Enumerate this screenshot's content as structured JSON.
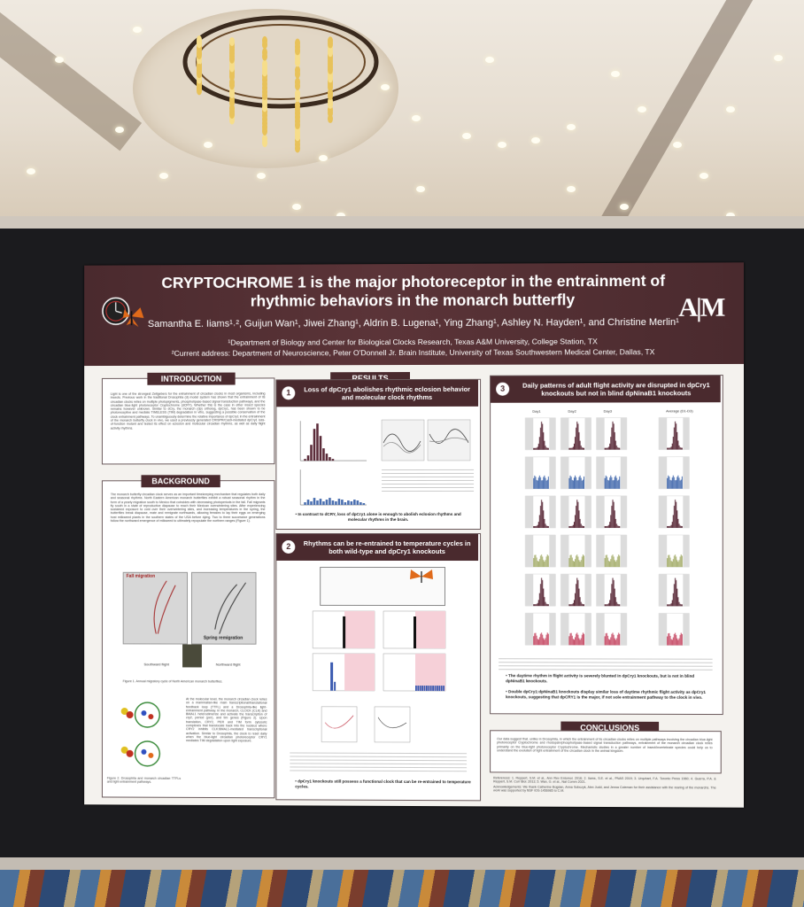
{
  "poster": {
    "title_line1": "CRYPTOCHROME 1 is the major photoreceptor in the entrainment of",
    "title_line2": "rhythmic behaviors in the monarch butterfly",
    "authors": "Samantha E. Iiams¹˒², Guijun Wan¹, Jiwei Zhang¹, Aldrin B. Lugena¹, Ying Zhang¹, Ashley N. Hayden¹, and Christine Merlin¹",
    "affiliation1": "¹Department of Biology and Center for Biological Clocks Research, Texas A&M University, College Station, TX",
    "affiliation2": "²Current address: Department of Neuroscience, Peter O'Donnell Jr. Brain Institute, University of Texas Southwestern Medical Center, Dallas, TX",
    "logo_right": "A|M"
  },
  "sections": {
    "introduction": {
      "title": "INTRODUCTION",
      "text": "Light is one of the strongest Zeitgebers for the entrainment of circadian clocks in most organisms, including insects. Previous work in the traditional Drosophila (d) model system has shown that the entrainment of its circadian clocks relies on multiple photopigments, phospholipase-based signal transduction pathways, and the circadian blue-light photoreceptor Cryptochrome (dCRY). Whether this is the case in other insect species remains however unknown. Similar to dCry, the monarch (dp) ortholog, dpCry1, has been shown to be photoreceptive and mediate TIMELESS (TIM) degradation in vitro, suggesting a possible conservation of the clock entrainment pathways. To unambiguously determine the relative importance of dpCry1 in the entrainment of the monarch butterfly clock in vivo, we used a previously generated CRISPR/Cas9-mediated dpCry1 loss-of-function mutant and tested its effect on eclosion and molecular circadian rhythms, as well as daily flight activity rhythms."
    },
    "background": {
      "title": "BACKGROUND",
      "text": "The monarch butterfly circadian clock serves as an important timekeeping mechanism that regulates both daily and seasonal rhythms. North Eastern American monarch butterflies exhibit a robust seasonal rhythm in the form of a yearly migration south to Mexico that coincides with decreasing photoperiods in the fall. Fall migrants fly south in a state of reproductive diapause to reach their Mexican overwintering sites. After experiencing sustained exposure to cold over their overwintering sites, and increasing temperatures in the spring, the butterflies break diapause, mate and remigrate northwards, allowing females to lay their eggs on emerging host milkweed plants in the southern states of the USA before dying. Two to three successive generations follow the northward emergence of milkweed to ultimately repopulate the northern ranges (Figure 1).",
      "fall_migration": "Fall migration",
      "spring_remigration": "Spring remigration",
      "southward_flight": "Southward flight",
      "northward_flight": "Northward flight",
      "figure1_caption": "Figure 1. Annual migratory cycle of North American monarch butterflies.",
      "clock_text": "At the molecular level, the monarch circadian clock relies on a mammalian-like main transcriptional/translational feedback loop (TTFL) and a Drosophila-like light-entrainment pathway. In the monarch, CLOCK (CLK) and BMAL1 heterodimerize and activate the transcription of cry2, period (per), and tim genes (Figure 2). Upon translation, CRY2, PER and TIM form cytosolic complexes that translocate back into the nucleus where CRY2 inhibits CLK:BMAL1-mediated transcriptional activation. Similar to Drosophila, the clock is reset daily when the blue-light circadian photoreceptor CRY1 mediates TIM degradation upon light exposure.",
      "figure2_caption": "Figure 2. Drosophila and monarch circadian TTFLs and light entrainment pathways."
    },
    "results": {
      "title": "RESULTS",
      "r1_title": "Loss of dpCry1 abolishes rhythmic eclosion behavior and molecular clock rhythms",
      "r1_bullet": "• In contrast to dCRY, loss of dpCry1 alone is enough to abolish eclosion rhythms and molecular rhythms in the brain.",
      "r2_title": "Rhythms can be re-entrained to temperature cycles in both wild-type and dpCry1 knockouts",
      "r2_bullet": "• dpCry1 knockouts still possess a functional clock that can be re-entrained to temperature cycles.",
      "r3_title": "Daily patterns of adult flight activity are disrupted in dpCry1 knockouts but not in blind dpNinaB1 knockouts",
      "r3_bullet1": "• The daytime rhythm in flight activity is severely blunted in dpCry1 knockouts, but is not in blind dpNinaB1 knockouts.",
      "r3_bullet2": "• Double dpCry1:dpNinaB1 knockouts display similar loss of daytime rhythmic flight activity as dpCry1 knockouts, suggesting that dpCRY1 is the major, if not sole entrainment pathway to the clock in vivo.",
      "day_labels": [
        "Day1",
        "Day2",
        "Day3",
        "Average (D1-D3)"
      ]
    },
    "conclusions": {
      "title": "CONCLUSIONS",
      "text": "Our data suggest that, unlike in Drosophila, in which the entrainment of its circadian clocks relies on multiple pathways involving the circadian blue-light photoreceptor Cryptochrome and rhodopsin/phospholipase-based signal transduction pathways, entrainment of the monarch circadian clock relies primarily on the blue-light photoreceptor Cryptochrome. Mechanistic studies in a greater number of insect/invertebrate species could help us to understand the evolution of light entrainment of the circadian clock in the animal kingdom.",
      "references": "References: 1. Reppert, S.M. et al., Ann Rev Entomol. 2016; 2. Iiams, S.E. et al., PNAS 2019; 3. Urquhart, F.A. Toronto Press 1960; 4. Guerra, P.A. & Reppert, S.M. Curr Biol. 2013; 5. Wan, G. et al., Nat Comm 2021.",
      "acknowledgements": "Acknowledgements: We thank Catherine Bogdan, Anna Sobczyk, Alex Judd, and Jenna Coleman for their assistance with the rearing of the monarchs. The work was supported by NSF IOS-1456985 to C.M."
    }
  },
  "colors": {
    "header": "#4a2a2e",
    "chart_dark": "#5a2a38",
    "chart_blue": "#4a6fb0",
    "chart_sage": "#a8b070",
    "chart_red": "#c8506a",
    "butterfly": "#e06a1a"
  }
}
